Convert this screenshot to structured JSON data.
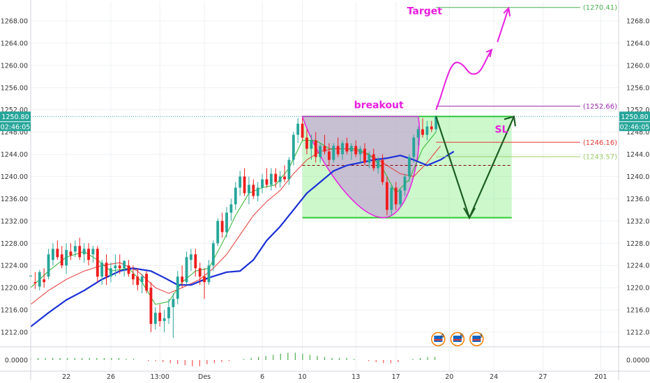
{
  "chart_data": {
    "type": "candlestick",
    "y_ticks": [
      1212.0,
      1216.0,
      1220.0,
      1224.0,
      1228.0,
      1232.0,
      1236.0,
      1240.0,
      1244.0,
      1248.0,
      1252.0,
      1256.0,
      1260.0,
      1264.0,
      1268.0
    ],
    "y_range": [
      1209.5,
      1271.5
    ],
    "x_range": [
      0,
      132
    ],
    "x_ticks": [
      {
        "label": "22",
        "x": 8
      },
      {
        "label": "26",
        "x": 18
      },
      {
        "label": "13:00",
        "x": 29
      },
      {
        "label": "Des",
        "x": 39
      },
      {
        "label": "6",
        "x": 52
      },
      {
        "label": "10",
        "x": 61
      },
      {
        "label": "13",
        "x": 73
      },
      {
        "label": "17",
        "x": 82
      },
      {
        "label": "20",
        "x": 94
      },
      {
        "label": "24",
        "x": 104
      },
      {
        "label": "27",
        "x": 115
      },
      {
        "label": "201",
        "x": 128
      }
    ],
    "price_label": "1250.80",
    "countdown": "02:46:05",
    "current_price": 1250.8,
    "osc_label": "0.0000",
    "levels": [
      {
        "name": "Target",
        "value": 1270.41,
        "label": "(1270.41)",
        "color": "#4caf50"
      },
      {
        "name": "breakout",
        "value": 1252.66,
        "label": "(1252.66)",
        "color": "#9c27b0"
      },
      {
        "name": "SL",
        "value": 1246.16,
        "label": "(1246.16)",
        "color": "#e53935"
      },
      {
        "name": "",
        "value": 1243.57,
        "label": "(1243.57)",
        "color": "#9ccc65"
      }
    ],
    "annotations": [
      {
        "text": "Target",
        "color": "#e91ee0"
      },
      {
        "text": "breakout",
        "color": "#e91ee0"
      },
      {
        "text": "SL",
        "color": "#e91ee0"
      }
    ],
    "event_badges": [
      "4",
      "5",
      "3"
    ],
    "range_box": {
      "x1": 61,
      "x2": 108,
      "top": 1250.8,
      "bottom": 1232.6
    },
    "cup": {
      "x1": 61,
      "x2": 87,
      "top": 1250.8,
      "bottom": 1232.6
    },
    "dashed_level": 1242.0,
    "candles": [
      [
        0,
        1222.0,
        1223.0,
        1220.5,
        1222.2
      ],
      [
        1,
        1221.0,
        1222.8,
        1219.8,
        1220.8
      ],
      [
        2,
        1220.2,
        1223.2,
        1219.5,
        1222.8
      ],
      [
        3,
        1221.5,
        1223.5,
        1220.0,
        1221.0
      ],
      [
        4,
        1222.0,
        1227.0,
        1221.5,
        1226.0
      ],
      [
        5,
        1225.0,
        1228.0,
        1224.0,
        1227.0
      ],
      [
        6,
        1227.0,
        1228.5,
        1225.0,
        1225.5
      ],
      [
        7,
        1226.0,
        1227.5,
        1223.5,
        1224.0
      ],
      [
        8,
        1224.0,
        1228.0,
        1222.5,
        1226.8
      ],
      [
        9,
        1226.5,
        1228.0,
        1225.0,
        1225.8
      ],
      [
        10,
        1226.5,
        1228.5,
        1225.5,
        1227.5
      ],
      [
        11,
        1227.5,
        1229.0,
        1225.0,
        1225.5
      ],
      [
        12,
        1226.0,
        1228.0,
        1224.5,
        1227.0
      ],
      [
        13,
        1227.0,
        1228.0,
        1224.0,
        1225.0
      ],
      [
        14,
        1226.0,
        1227.5,
        1224.5,
        1227.0
      ],
      [
        15,
        1227.0,
        1227.5,
        1221.0,
        1222.0
      ],
      [
        16,
        1222.0,
        1225.0,
        1220.5,
        1224.5
      ],
      [
        17,
        1224.5,
        1226.0,
        1220.5,
        1222.0
      ],
      [
        18,
        1222.0,
        1224.5,
        1221.0,
        1223.5
      ],
      [
        19,
        1223.5,
        1226.0,
        1222.0,
        1224.0
      ],
      [
        20,
        1224.0,
        1226.0,
        1222.5,
        1223.5
      ],
      [
        21,
        1223.5,
        1225.0,
        1222.0,
        1224.8
      ],
      [
        22,
        1224.0,
        1225.0,
        1222.0,
        1222.5
      ],
      [
        23,
        1222.5,
        1224.0,
        1220.5,
        1221.5
      ],
      [
        24,
        1222.0,
        1223.5,
        1219.5,
        1220.5
      ],
      [
        25,
        1221.0,
        1222.5,
        1219.0,
        1222.0
      ],
      [
        26,
        1222.5,
        1223.0,
        1219.0,
        1219.5
      ],
      [
        27,
        1220.0,
        1221.0,
        1212.0,
        1213.5
      ],
      [
        28,
        1213.5,
        1216.5,
        1212.5,
        1215.5
      ],
      [
        29,
        1215.5,
        1217.0,
        1213.0,
        1214.0
      ],
      [
        30,
        1214.0,
        1216.0,
        1212.0,
        1214.5
      ],
      [
        31,
        1214.5,
        1218.0,
        1213.5,
        1216.5
      ],
      [
        32,
        1216.5,
        1219.0,
        1211.0,
        1218.0
      ],
      [
        33,
        1218.0,
        1223.0,
        1217.0,
        1222.0
      ],
      [
        34,
        1222.0,
        1224.0,
        1220.0,
        1221.0
      ],
      [
        35,
        1221.0,
        1226.5,
        1220.5,
        1225.5
      ],
      [
        36,
        1225.0,
        1227.0,
        1223.0,
        1226.0
      ],
      [
        37,
        1226.0,
        1227.0,
        1222.0,
        1223.5
      ],
      [
        38,
        1223.5,
        1224.5,
        1220.5,
        1222.0
      ],
      [
        39,
        1222.0,
        1223.5,
        1218.0,
        1221.0
      ],
      [
        40,
        1221.0,
        1225.0,
        1220.5,
        1224.0
      ],
      [
        41,
        1224.0,
        1228.5,
        1223.0,
        1228.0
      ],
      [
        42,
        1228.0,
        1232.5,
        1227.5,
        1232.0
      ],
      [
        43,
        1232.0,
        1233.5,
        1229.0,
        1230.0
      ],
      [
        44,
        1230.0,
        1234.5,
        1229.0,
        1233.5
      ],
      [
        45,
        1233.5,
        1236.0,
        1232.0,
        1235.0
      ],
      [
        46,
        1235.0,
        1239.0,
        1234.0,
        1238.0
      ],
      [
        47,
        1238.0,
        1241.0,
        1236.5,
        1240.0
      ],
      [
        48,
        1240.0,
        1241.5,
        1236.5,
        1237.0
      ],
      [
        49,
        1237.0,
        1240.0,
        1235.0,
        1238.5
      ],
      [
        50,
        1238.5,
        1239.5,
        1236.0,
        1236.5
      ],
      [
        51,
        1236.5,
        1239.0,
        1235.5,
        1238.0
      ],
      [
        52,
        1238.0,
        1240.5,
        1237.0,
        1239.5
      ],
      [
        53,
        1239.5,
        1241.5,
        1238.0,
        1238.5
      ],
      [
        54,
        1238.5,
        1241.5,
        1237.5,
        1240.5
      ],
      [
        55,
        1240.5,
        1241.5,
        1238.0,
        1239.0
      ],
      [
        56,
        1239.0,
        1241.0,
        1238.0,
        1240.0
      ],
      [
        57,
        1240.0,
        1242.0,
        1239.0,
        1239.5
      ],
      [
        58,
        1239.5,
        1243.5,
        1238.5,
        1243.0
      ],
      [
        59,
        1243.0,
        1248.0,
        1242.0,
        1247.5
      ],
      [
        60,
        1247.5,
        1250.5,
        1246.0,
        1249.5
      ],
      [
        61,
        1249.5,
        1250.5,
        1246.5,
        1247.0
      ],
      [
        62,
        1247.0,
        1248.5,
        1244.0,
        1245.0
      ],
      [
        63,
        1245.0,
        1247.5,
        1243.0,
        1246.5
      ],
      [
        64,
        1246.5,
        1248.0,
        1242.5,
        1243.5
      ],
      [
        65,
        1243.5,
        1246.0,
        1242.5,
        1245.5
      ],
      [
        66,
        1245.5,
        1247.5,
        1244.0,
        1244.5
      ],
      [
        67,
        1244.5,
        1246.0,
        1242.0,
        1243.0
      ],
      [
        68,
        1243.0,
        1246.0,
        1242.5,
        1245.5
      ],
      [
        69,
        1245.5,
        1247.0,
        1243.5,
        1244.0
      ],
      [
        70,
        1244.0,
        1246.5,
        1243.0,
        1246.0
      ],
      [
        71,
        1246.0,
        1247.0,
        1244.0,
        1244.5
      ],
      [
        72,
        1244.5,
        1246.0,
        1243.0,
        1245.5
      ],
      [
        73,
        1245.5,
        1246.5,
        1243.5,
        1244.0
      ],
      [
        74,
        1244.0,
        1245.5,
        1242.5,
        1245.0
      ],
      [
        75,
        1245.0,
        1246.0,
        1242.0,
        1242.5
      ],
      [
        76,
        1242.5,
        1244.5,
        1241.5,
        1244.0
      ],
      [
        77,
        1244.0,
        1245.0,
        1241.0,
        1241.5
      ],
      [
        78,
        1241.5,
        1243.5,
        1240.5,
        1243.0
      ],
      [
        79,
        1243.0,
        1244.0,
        1238.5,
        1239.0
      ],
      [
        80,
        1239.0,
        1240.0,
        1233.0,
        1234.0
      ],
      [
        81,
        1234.0,
        1238.5,
        1233.0,
        1238.0
      ],
      [
        82,
        1238.0,
        1239.0,
        1234.0,
        1235.0
      ],
      [
        83,
        1235.0,
        1238.0,
        1234.5,
        1237.5
      ],
      [
        84,
        1237.5,
        1240.5,
        1236.5,
        1240.0
      ],
      [
        85,
        1240.0,
        1244.0,
        1239.0,
        1243.5
      ],
      [
        86,
        1243.5,
        1247.5,
        1242.5,
        1247.0
      ],
      [
        87,
        1247.0,
        1249.0,
        1245.5,
        1248.5
      ],
      [
        88,
        1248.5,
        1250.5,
        1247.0,
        1247.5
      ],
      [
        89,
        1247.5,
        1250.0,
        1246.5,
        1249.0
      ],
      [
        90,
        1249.0,
        1250.0,
        1248.0,
        1248.5
      ],
      [
        91,
        1248.5,
        1251.0,
        1248.0,
        1250.8
      ]
    ],
    "ma_blue": [
      [
        0,
        1213.0
      ],
      [
        4,
        1215.5
      ],
      [
        8,
        1217.8
      ],
      [
        12,
        1219.5
      ],
      [
        16,
        1221.5
      ],
      [
        20,
        1223.0
      ],
      [
        23,
        1223.5
      ],
      [
        27,
        1223.0
      ],
      [
        30,
        1221.8
      ],
      [
        33,
        1220.5
      ],
      [
        36,
        1220.5
      ],
      [
        40,
        1221.8
      ],
      [
        44,
        1222.8
      ],
      [
        47,
        1223.0
      ],
      [
        50,
        1225.0
      ],
      [
        53,
        1228.5
      ],
      [
        56,
        1231.0
      ],
      [
        59,
        1234.0
      ],
      [
        62,
        1237.0
      ],
      [
        65,
        1239.0
      ],
      [
        68,
        1241.0
      ],
      [
        71,
        1242.0
      ],
      [
        74,
        1242.5
      ],
      [
        77,
        1243.0
      ],
      [
        80,
        1243.3
      ],
      [
        83,
        1243.8
      ],
      [
        86,
        1243.0
      ],
      [
        89,
        1242.0
      ],
      [
        92,
        1243.0
      ],
      [
        95,
        1244.5
      ]
    ],
    "ma_red": [
      [
        0,
        1217.0
      ],
      [
        4,
        1219.5
      ],
      [
        8,
        1221.5
      ],
      [
        12,
        1223.0
      ],
      [
        16,
        1224.0
      ],
      [
        20,
        1224.5
      ],
      [
        24,
        1223.0
      ],
      [
        28,
        1220.0
      ],
      [
        31,
        1219.0
      ],
      [
        34,
        1220.0
      ],
      [
        38,
        1221.5
      ],
      [
        41,
        1223.5
      ],
      [
        44,
        1226.0
      ],
      [
        47,
        1229.5
      ],
      [
        50,
        1233.0
      ],
      [
        53,
        1235.5
      ],
      [
        56,
        1237.5
      ],
      [
        59,
        1240.5
      ],
      [
        62,
        1243.0
      ],
      [
        65,
        1244.5
      ],
      [
        68,
        1245.0
      ],
      [
        71,
        1245.0
      ],
      [
        74,
        1244.5
      ],
      [
        77,
        1243.5
      ],
      [
        80,
        1242.0
      ],
      [
        83,
        1240.5
      ],
      [
        86,
        1240.0
      ],
      [
        89,
        1242.5
      ],
      [
        92,
        1245.5
      ]
    ],
    "ma_green": [
      [
        0,
        1220.0
      ],
      [
        4,
        1223.0
      ],
      [
        8,
        1225.5
      ],
      [
        12,
        1226.5
      ],
      [
        15,
        1225.0
      ],
      [
        18,
        1223.0
      ],
      [
        22,
        1223.5
      ],
      [
        25,
        1221.0
      ],
      [
        28,
        1217.0
      ],
      [
        31,
        1217.5
      ],
      [
        34,
        1221.0
      ],
      [
        37,
        1223.0
      ],
      [
        40,
        1223.5
      ],
      [
        43,
        1228.0
      ],
      [
        46,
        1233.0
      ],
      [
        49,
        1237.0
      ],
      [
        52,
        1238.0
      ],
      [
        55,
        1238.5
      ],
      [
        58,
        1241.5
      ],
      [
        61,
        1246.5
      ],
      [
        64,
        1246.5
      ],
      [
        67,
        1245.0
      ],
      [
        70,
        1245.0
      ],
      [
        73,
        1245.0
      ],
      [
        76,
        1244.0
      ],
      [
        79,
        1241.5
      ],
      [
        82,
        1237.0
      ],
      [
        85,
        1239.5
      ],
      [
        88,
        1245.0
      ],
      [
        91,
        1248.0
      ]
    ],
    "oscillator": [
      1,
      1,
      1,
      1,
      1,
      1,
      1,
      1,
      1,
      1,
      1,
      1,
      1,
      0.5,
      0.5,
      0,
      -0.5,
      -0.5,
      -1,
      -1.5,
      -2,
      -2.5,
      -3,
      -3,
      -2,
      -1.5,
      -1,
      -0.5,
      0,
      0.5,
      1,
      1.5,
      2,
      2.5,
      3,
      3.5,
      3.5,
      3,
      2.5,
      2,
      1.5,
      1,
      1,
      1,
      0.5,
      0,
      -0.5,
      -1,
      -1.5,
      -1.5,
      -1,
      0,
      0.5,
      1,
      1.5,
      1.5
    ]
  }
}
